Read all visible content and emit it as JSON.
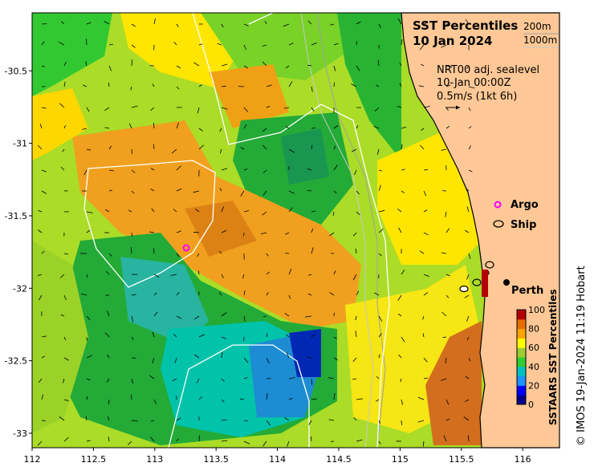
{
  "title": {
    "line1": "SST Percentiles",
    "line2": "10 Jan 2024"
  },
  "depth_contours": [
    "200m",
    "1000m"
  ],
  "current_info": {
    "line1": "NRT00 adj. sealevel",
    "line2": "10-Jan 00:00Z",
    "line3": "0.5m/s (1kt 6h)"
  },
  "legend": {
    "argo": "Argo",
    "ship": "Ship",
    "argo_color": "#ff00ff"
  },
  "places": [
    {
      "name": "Perth",
      "lon": 115.86,
      "lat": -31.95
    }
  ],
  "argo_floats": [
    {
      "lon": 113.26,
      "lat": -31.7
    }
  ],
  "colorbar": {
    "label": "SSTAARS SST Percentiles",
    "ticks": [
      "0",
      "20",
      "40",
      "60",
      "80",
      "100"
    ],
    "colors": [
      "#00008b",
      "#0000ff",
      "#1e90ff",
      "#00bfbf",
      "#32cd32",
      "#9acd32",
      "#ffff00",
      "#ffa500",
      "#e66e00",
      "#b40000"
    ]
  },
  "axes": {
    "lon_range": [
      112.0,
      116.3
    ],
    "lat_range": [
      -33.1,
      -30.1
    ],
    "x_ticks": [
      "112",
      "112.5",
      "113",
      "113.5",
      "114",
      "114.5",
      "115",
      "115.5",
      "116"
    ],
    "y_ticks": [
      "-30.5",
      "-31",
      "-31.5",
      "-32",
      "-32.5",
      "-33"
    ]
  },
  "credit": "© IMOS 19-Jan-2024 11:19 Hobart",
  "colors": {
    "land": "#ffc896",
    "contour": "#ffffff",
    "depth200": "#a0a0a0",
    "depth1000": "#c8c8c8"
  }
}
